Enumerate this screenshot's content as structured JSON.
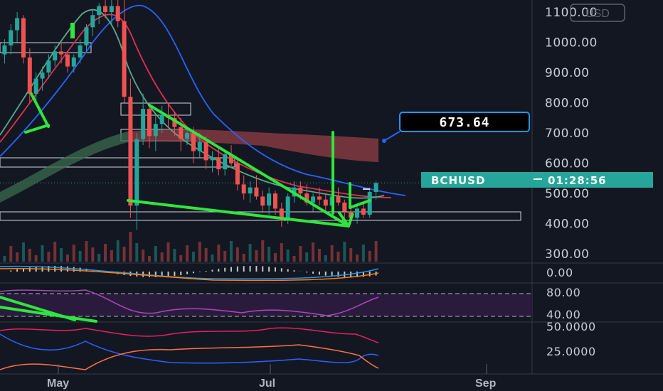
{
  "currency_button": "USD",
  "ticker": {
    "symbol": "BCHUSD",
    "countdown": "01:28:56"
  },
  "callout": {
    "value": "673.64"
  },
  "chart_data": {
    "type": "candlestick",
    "title": "",
    "x_months": [
      "May",
      "Jul",
      "Sep"
    ],
    "price_axis": {
      "ticks": [
        "1100.00",
        "1000.00",
        "900.00",
        "800.00",
        "700.00",
        "600.00",
        "500.00",
        "400.00",
        "300.00"
      ],
      "range": [
        270,
        1140
      ]
    },
    "current_price": 535,
    "macd_axis": {
      "ticks": [
        "0.00"
      ]
    },
    "rsi_axis": {
      "ticks": [
        "80.00",
        "40.00"
      ],
      "band": [
        40,
        80
      ]
    },
    "dmi_axis": {
      "ticks": [
        "50.0000",
        "25.0000"
      ]
    },
    "candles": [
      [
        960,
        1010,
        930,
        990
      ],
      [
        990,
        1060,
        960,
        1040
      ],
      [
        1040,
        1100,
        1000,
        1080
      ],
      [
        1080,
        1090,
        930,
        950
      ],
      [
        950,
        980,
        800,
        830
      ],
      [
        830,
        900,
        800,
        880
      ],
      [
        880,
        920,
        840,
        900
      ],
      [
        900,
        960,
        880,
        940
      ],
      [
        940,
        990,
        920,
        970
      ],
      [
        970,
        1000,
        930,
        960
      ],
      [
        960,
        970,
        900,
        920
      ],
      [
        920,
        960,
        900,
        950
      ],
      [
        950,
        1010,
        930,
        990
      ],
      [
        990,
        1060,
        970,
        1050
      ],
      [
        1050,
        1110,
        1020,
        1090
      ],
      [
        1090,
        1130,
        1060,
        1120
      ],
      [
        1120,
        1140,
        1080,
        1100
      ],
      [
        1100,
        1140,
        1060,
        1120
      ],
      [
        1120,
        1140,
        1050,
        1070
      ],
      [
        1070,
        1140,
        800,
        820
      ],
      [
        820,
        880,
        420,
        460
      ],
      [
        460,
        700,
        380,
        680
      ],
      [
        680,
        830,
        660,
        780
      ],
      [
        780,
        800,
        650,
        690
      ],
      [
        690,
        760,
        640,
        730
      ],
      [
        730,
        790,
        700,
        760
      ],
      [
        760,
        800,
        720,
        750
      ],
      [
        750,
        770,
        690,
        720
      ],
      [
        720,
        750,
        640,
        680
      ],
      [
        680,
        720,
        660,
        700
      ],
      [
        700,
        720,
        600,
        640
      ],
      [
        640,
        700,
        620,
        670
      ],
      [
        670,
        690,
        580,
        610
      ],
      [
        610,
        640,
        570,
        620
      ],
      [
        620,
        650,
        560,
        580
      ],
      [
        580,
        640,
        560,
        630
      ],
      [
        630,
        660,
        590,
        600
      ],
      [
        600,
        610,
        510,
        530
      ],
      [
        530,
        560,
        480,
        500
      ],
      [
        500,
        540,
        470,
        520
      ],
      [
        520,
        560,
        480,
        490
      ],
      [
        490,
        510,
        440,
        460
      ],
      [
        460,
        520,
        430,
        500
      ],
      [
        500,
        510,
        430,
        450
      ],
      [
        450,
        470,
        390,
        410
      ],
      [
        410,
        500,
        400,
        490
      ],
      [
        490,
        540,
        470,
        520
      ],
      [
        520,
        540,
        480,
        500
      ],
      [
        500,
        530,
        460,
        470
      ],
      [
        470,
        500,
        440,
        490
      ],
      [
        490,
        520,
        460,
        480
      ],
      [
        480,
        500,
        440,
        460
      ],
      [
        460,
        500,
        440,
        490
      ],
      [
        490,
        520,
        460,
        470
      ],
      [
        470,
        480,
        420,
        440
      ],
      [
        440,
        470,
        400,
        420
      ],
      [
        420,
        460,
        400,
        450
      ],
      [
        450,
        470,
        420,
        430
      ],
      [
        430,
        520,
        420,
        505
      ],
      [
        505,
        540,
        480,
        535
      ]
    ]
  }
}
